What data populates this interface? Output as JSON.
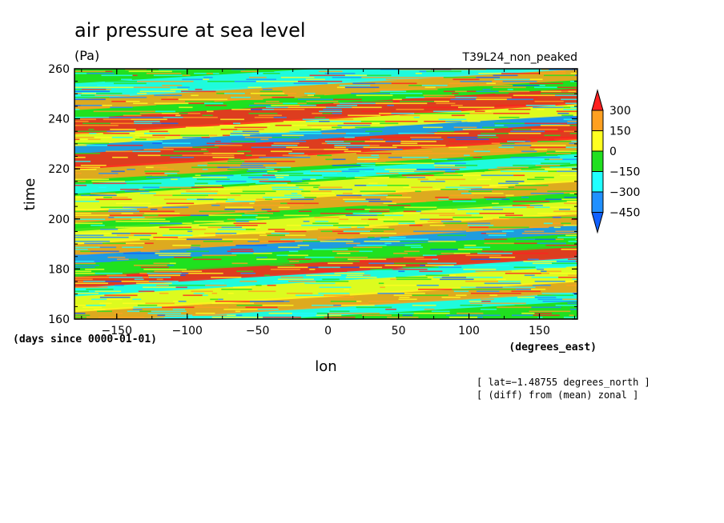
{
  "chart_data": {
    "type": "heatmap",
    "title": "air pressure at sea level",
    "units": "(Pa)",
    "run_label": "T39L24_non_peaked",
    "xlabel": "lon",
    "ylabel": "time",
    "x_units": "(degrees_east)",
    "y_units": "(days since 0000-01-01)",
    "xlim": [
      -180,
      177
    ],
    "ylim": [
      160,
      260
    ],
    "x_ticks": [
      -150,
      -100,
      -50,
      0,
      50,
      100,
      150
    ],
    "y_ticks": [
      160,
      180,
      200,
      220,
      240,
      260
    ],
    "x_tick_labels": [
      "−150",
      "−100",
      "−50",
      "0",
      "50",
      "100",
      "150"
    ],
    "y_tick_labels": [
      "160",
      "180",
      "200",
      "220",
      "240",
      "260"
    ],
    "notes": [
      "[ lat=−1.48755 degrees_north ]",
      "[ (diff) from (mean) zonal ]"
    ],
    "colorbar": {
      "levels": [
        300,
        150,
        0,
        -150,
        -300,
        -450
      ],
      "labels": [
        "300",
        "150",
        "0",
        "−150",
        "−300",
        "−450"
      ],
      "colors": [
        "#ff2020",
        "#ffa020",
        "#ffff20",
        "#20e020",
        "#20ffff",
        "#2090ff",
        "#1060ff"
      ]
    },
    "bands": [
      {
        "time": 163,
        "value": -300
      },
      {
        "time": 167,
        "value": 150
      },
      {
        "time": 172,
        "value": 0
      },
      {
        "time": 177,
        "value": -300
      },
      {
        "time": 181,
        "value": 300
      },
      {
        "time": 186,
        "value": -150
      },
      {
        "time": 190,
        "value": -450
      },
      {
        "time": 194,
        "value": 150
      },
      {
        "time": 199,
        "value": 0
      },
      {
        "time": 203,
        "value": -150
      },
      {
        "time": 207,
        "value": 150
      },
      {
        "time": 212,
        "value": 0
      },
      {
        "time": 218,
        "value": -300
      },
      {
        "time": 224,
        "value": 150
      },
      {
        "time": 229,
        "value": 300
      },
      {
        "time": 234,
        "value": -450
      },
      {
        "time": 238,
        "value": 0
      },
      {
        "time": 243,
        "value": 300
      },
      {
        "time": 248,
        "value": -150
      },
      {
        "time": 252,
        "value": 150
      },
      {
        "time": 257,
        "value": -300
      }
    ],
    "band_slope_days_per_360deg": 12
  }
}
